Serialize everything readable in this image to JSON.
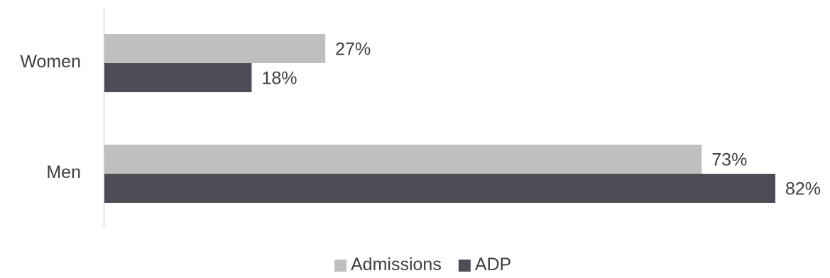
{
  "chart_data": {
    "type": "bar",
    "orientation": "horizontal",
    "categories": [
      "Women",
      "Men"
    ],
    "series": [
      {
        "name": "Admissions",
        "values": [
          27,
          73
        ],
        "color": "#bfbfbf"
      },
      {
        "name": "ADP",
        "values": [
          18,
          82
        ],
        "color": "#4d4d55"
      }
    ],
    "value_format": "{v}%",
    "xlim": [
      0,
      82
    ],
    "grid": false,
    "legend": "bottom-center",
    "title": "",
    "xlabel": "",
    "ylabel": ""
  }
}
